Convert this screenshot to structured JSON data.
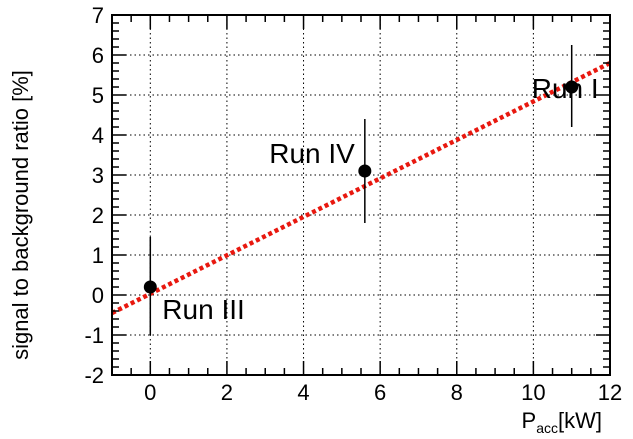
{
  "chart_data": {
    "type": "scatter",
    "xlabel": "P",
    "xlabel_sub": "acc",
    "xlabel_unit": "[kW]",
    "ylabel": "signal to background ratio [%]",
    "xlim": [
      -1,
      12
    ],
    "ylim": [
      -2,
      7
    ],
    "x_ticks": [
      0,
      2,
      4,
      6,
      8,
      10,
      12
    ],
    "y_ticks": [
      -2,
      -1,
      0,
      1,
      2,
      3,
      4,
      5,
      6,
      7
    ],
    "grid": true,
    "points": [
      {
        "label": "Run III",
        "x": 0,
        "y": 0.2,
        "err_low": 1.2,
        "err_high": 1.25
      },
      {
        "label": "Run IV",
        "x": 5.6,
        "y": 3.1,
        "err_low": 1.3,
        "err_high": 1.3
      },
      {
        "label": "Run I",
        "x": 11,
        "y": 5.2,
        "err_low": 1.0,
        "err_high": 1.05
      }
    ],
    "fit_line": {
      "x": [
        -1,
        12
      ],
      "y": [
        -0.45,
        5.8
      ],
      "color": "#e8180f",
      "style": "dotted"
    },
    "marker_color": "#000000"
  }
}
